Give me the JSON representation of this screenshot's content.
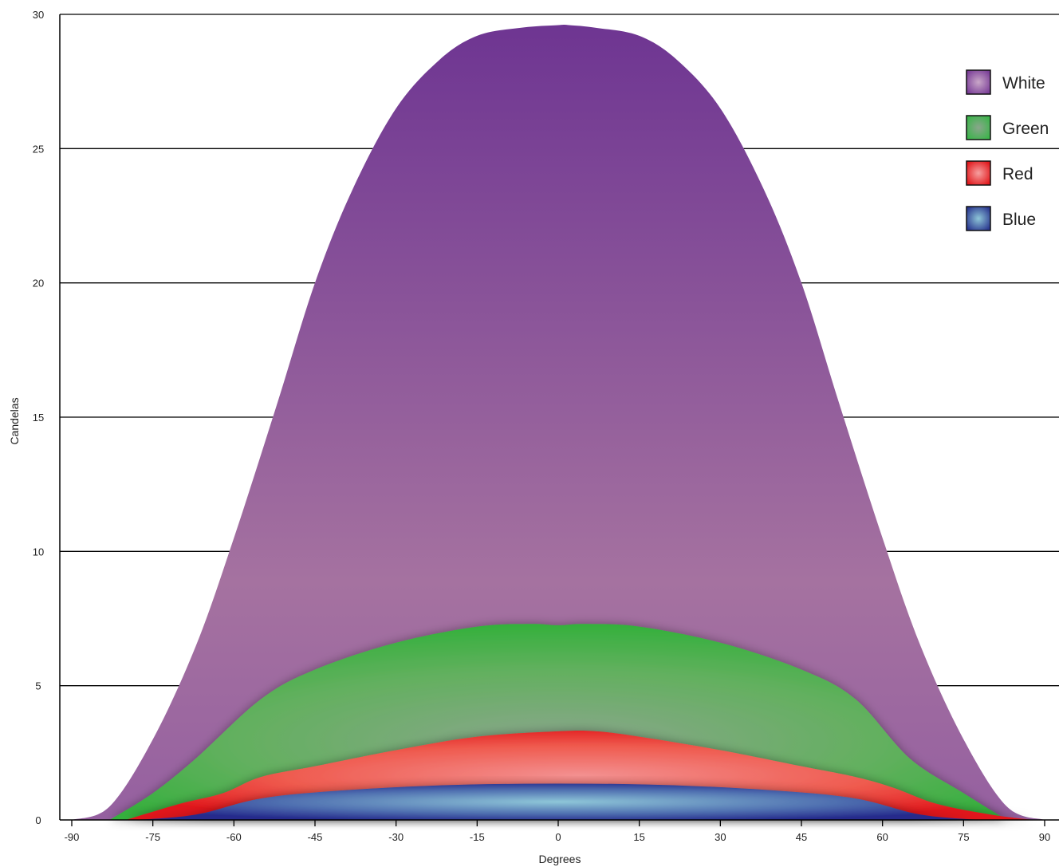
{
  "chart_data": {
    "type": "area",
    "title": "",
    "xlabel": "Degrees",
    "ylabel": "Candelas",
    "xlim": [
      -92,
      92
    ],
    "ylim": [
      0,
      30
    ],
    "x_ticks": [
      "-90",
      "-75",
      "-60",
      "-45",
      "-30",
      "-15",
      "0",
      "15",
      "30",
      "45",
      "60",
      "75",
      "90"
    ],
    "y_ticks": [
      "0",
      "5",
      "10",
      "15",
      "20",
      "25",
      "30"
    ],
    "grid": "horizontal",
    "legend_position": "top-right",
    "series": [
      {
        "name": "White",
        "color": "#7b3f98",
        "x": [
          -90,
          -83,
          -75,
          -67,
          -60,
          -52,
          -45,
          -38,
          -30,
          -22,
          -15,
          -7,
          0,
          2,
          7,
          15,
          22,
          30,
          38,
          45,
          52,
          60,
          67,
          75,
          83,
          90
        ],
        "y": [
          0,
          0.5,
          3,
          6.5,
          10.5,
          15.5,
          20,
          23.5,
          26.5,
          28.3,
          29.2,
          29.5,
          29.6,
          29.6,
          29.5,
          29.2,
          28.3,
          26.5,
          23.5,
          20,
          15.5,
          10.5,
          6.5,
          3,
          0.5,
          0
        ]
      },
      {
        "name": "Green",
        "color": "#3cb44b",
        "x": [
          -83,
          -75,
          -67,
          -55,
          -45,
          -30,
          -15,
          -5,
          0,
          5,
          15,
          30,
          45,
          55,
          65,
          75,
          83
        ],
        "y": [
          0,
          1,
          2.3,
          4.5,
          5.6,
          6.6,
          7.2,
          7.3,
          7.25,
          7.3,
          7.2,
          6.6,
          5.6,
          4.5,
          2.3,
          1,
          0
        ]
      },
      {
        "name": "Red",
        "color": "#e8272b",
        "x": [
          -80,
          -70,
          -62,
          -55,
          -45,
          -30,
          -15,
          0,
          7,
          15,
          30,
          45,
          55,
          62,
          70,
          80,
          88
        ],
        "y": [
          0,
          0.6,
          1,
          1.6,
          2,
          2.6,
          3.1,
          3.3,
          3.3,
          3.1,
          2.6,
          2,
          1.6,
          1.2,
          0.6,
          0.2,
          0
        ]
      },
      {
        "name": "Blue",
        "color": "#2b3990",
        "x": [
          -78,
          -67,
          -55,
          -40,
          -20,
          0,
          20,
          40,
          55,
          67,
          78
        ],
        "y": [
          0,
          0.2,
          0.8,
          1.1,
          1.3,
          1.35,
          1.3,
          1.1,
          0.8,
          0.2,
          0
        ]
      }
    ]
  }
}
